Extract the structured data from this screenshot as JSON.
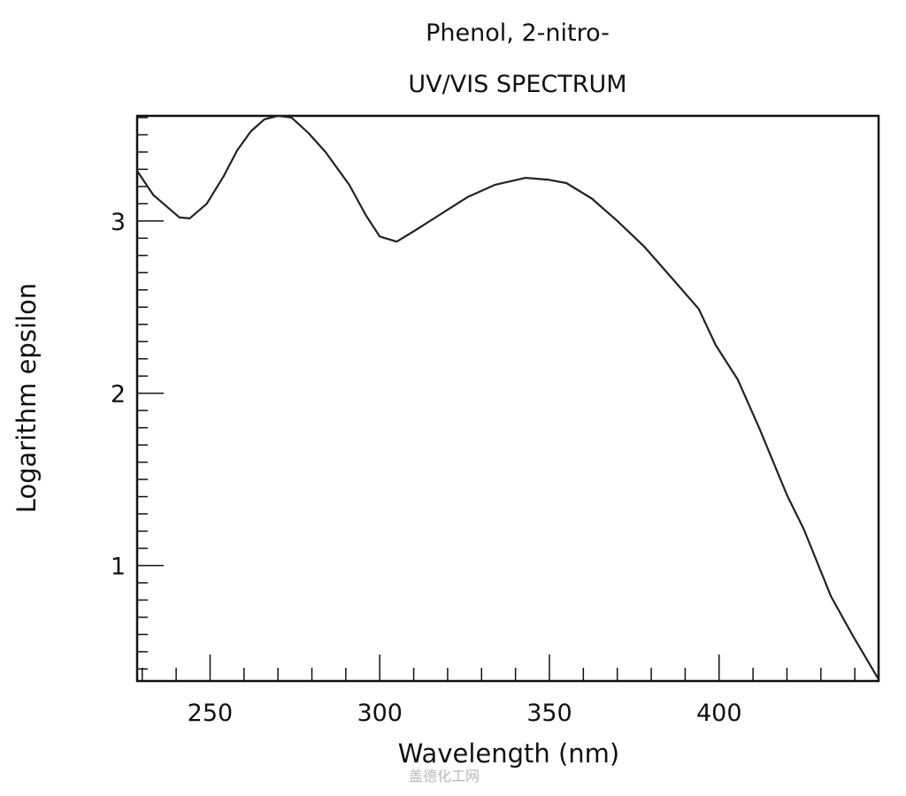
{
  "chart_data": {
    "type": "line",
    "title": "Phenol, 2-nitro-",
    "subtitle": "UV/VIS SPECTRUM",
    "xlabel": "Wavelength (nm)",
    "ylabel": "Logarithm epsilon",
    "xlim": [
      228.5,
      447
    ],
    "ylim": [
      0.33,
      3.61
    ],
    "xticks": [
      250,
      300,
      350,
      400
    ],
    "yticks": [
      1,
      2,
      3
    ],
    "x_minor_step": 10,
    "y_minor_step": 0.1,
    "grid": false,
    "line_color": "#222222",
    "series": [
      {
        "x": [
          228.5,
          233.3,
          241,
          244,
          249,
          254,
          258,
          262,
          266,
          270,
          274,
          279,
          284,
          291,
          296,
          300,
          305,
          310,
          318,
          326,
          334,
          343,
          349.5,
          355,
          362.5,
          370,
          378,
          386,
          394,
          399,
          405.5,
          412,
          420,
          425,
          433,
          439.5,
          447
        ],
        "y": [
          3.29,
          3.15,
          3.02,
          3.015,
          3.1,
          3.26,
          3.41,
          3.52,
          3.59,
          3.61,
          3.6,
          3.51,
          3.4,
          3.21,
          3.03,
          2.91,
          2.88,
          2.94,
          3.04,
          3.14,
          3.21,
          3.25,
          3.24,
          3.22,
          3.13,
          3.0,
          2.85,
          2.67,
          2.49,
          2.28,
          2.08,
          1.79,
          1.41,
          1.21,
          0.82,
          0.59,
          0.34
        ]
      }
    ]
  },
  "watermark": "盖德化工网"
}
